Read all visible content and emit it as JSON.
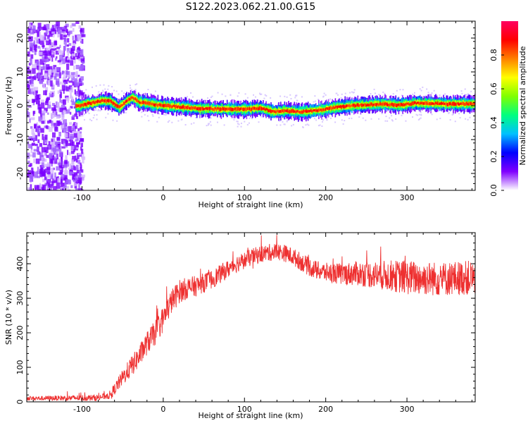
{
  "figure": {
    "title": "S122.2023.062.21.00.G15"
  },
  "chart_data": [
    {
      "type": "heatmap",
      "xlabel": "Height of straight line (km)",
      "ylabel": "Frequency (Hz)",
      "xlim": [
        -168,
        384
      ],
      "ylim": [
        -25,
        25
      ],
      "x_ticks": [
        -100,
        0,
        100,
        200,
        300
      ],
      "y_ticks": [
        -20,
        -10,
        0,
        10,
        20
      ],
      "colorbar": {
        "label": "Normalized spectral amplitude",
        "range": [
          0,
          1
        ],
        "ticks": [
          0.0,
          0.2,
          0.4,
          0.6,
          0.8
        ],
        "colors": [
          "#ffffff",
          "#8000ff",
          "#0000ff",
          "#00c0ff",
          "#00ff80",
          "#80ff00",
          "#ffff00",
          "#ff8000",
          "#ff0000",
          "#ff0060"
        ]
      },
      "ridge": {
        "x": [
          -105,
          -95,
          -85,
          -75,
          -65,
          -55,
          -45,
          -38,
          -30,
          -20,
          -10,
          0,
          20,
          40,
          60,
          80,
          100,
          120,
          135,
          150,
          170,
          195,
          210,
          230,
          250,
          270,
          290,
          310,
          330,
          350,
          384
        ],
        "y": [
          0,
          0.5,
          1.0,
          1.5,
          1.3,
          -0.5,
          1.5,
          2.5,
          1.0,
          0.8,
          0.3,
          0.0,
          -0.3,
          -0.8,
          -0.9,
          -1.0,
          -1.0,
          -0.7,
          -1.8,
          -1.5,
          -1.8,
          -1.2,
          -0.5,
          0.0,
          0.3,
          0.5,
          0.2,
          0.8,
          0.7,
          0.5,
          0.6
        ]
      },
      "noise_region_x": [
        -168,
        -100
      ]
    },
    {
      "type": "line",
      "xlabel": "Height of straight line (km)",
      "ylabel": "SNR (10 * v/v)",
      "xlim": [
        -168,
        384
      ],
      "ylim": [
        0,
        490
      ],
      "x_ticks": [
        -100,
        0,
        100,
        200,
        300
      ],
      "y_ticks": [
        0,
        100,
        200,
        300,
        400
      ],
      "color": "#ee3030",
      "trend": {
        "x": [
          -168,
          -80,
          -65,
          -50,
          -40,
          -30,
          -20,
          -10,
          0,
          10,
          20,
          30,
          40,
          50,
          60,
          70,
          80,
          90,
          100,
          110,
          120,
          130,
          140,
          150,
          160,
          170,
          180,
          190,
          200,
          220,
          240,
          260,
          280,
          300,
          320,
          340,
          360,
          384
        ],
        "y": [
          10,
          12,
          20,
          70,
          100,
          130,
          170,
          200,
          240,
          290,
          320,
          330,
          335,
          345,
          355,
          370,
          385,
          400,
          410,
          420,
          428,
          432,
          436,
          430,
          420,
          405,
          390,
          380,
          375,
          370,
          372,
          368,
          365,
          360,
          358,
          356,
          358,
          360
        ]
      },
      "spread": {
        "x": [
          -168,
          -70,
          -40,
          0,
          50,
          100,
          150,
          200,
          250,
          300,
          340,
          384
        ],
        "y": [
          6,
          10,
          30,
          38,
          28,
          25,
          25,
          28,
          38,
          50,
          50,
          50
        ]
      }
    }
  ]
}
